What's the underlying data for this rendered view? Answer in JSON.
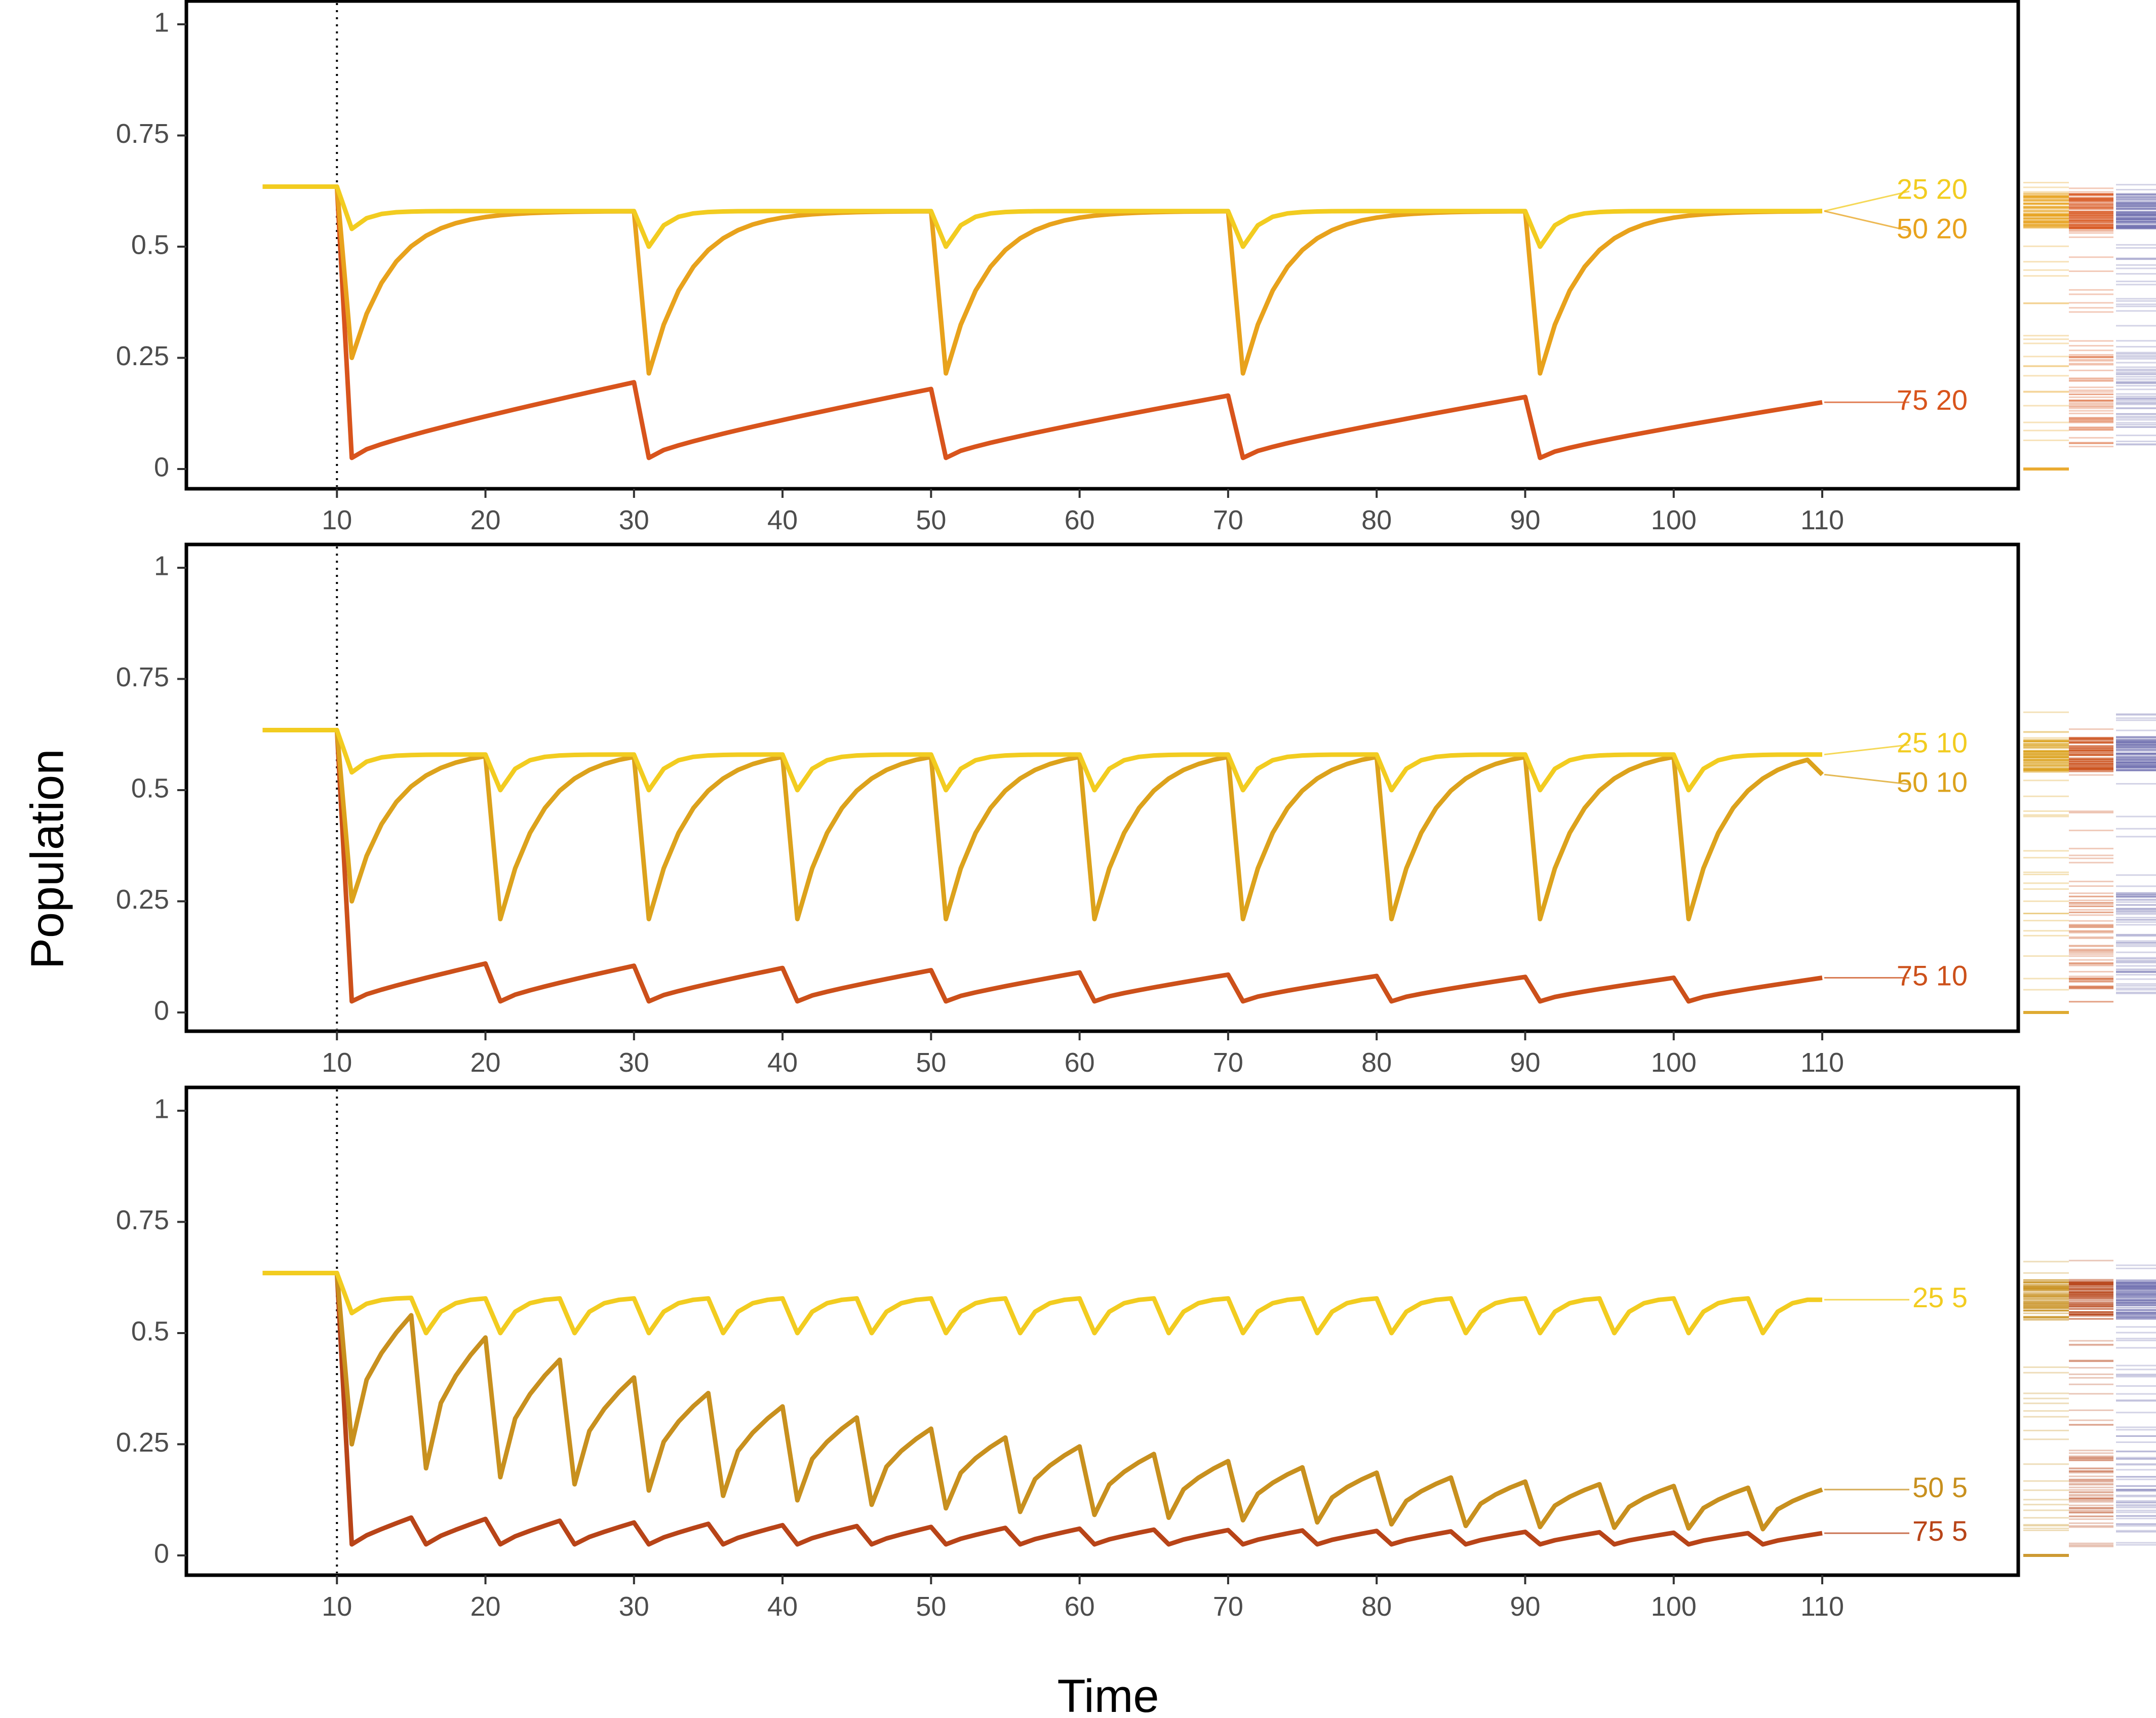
{
  "figure": {
    "xlabel": "Time",
    "ylabel": "Population",
    "xticks": [
      10,
      20,
      30,
      40,
      50,
      60,
      70,
      80,
      90,
      100,
      110
    ],
    "yticks": [
      0,
      0.25,
      0.5,
      0.75,
      1
    ],
    "ytick_labels": [
      "0",
      "0.25",
      "0.5",
      "0.75",
      "1"
    ],
    "xlim": [
      0,
      124
    ],
    "ylim": [
      -0.04,
      1.04
    ],
    "intervention_time": 10,
    "colors": {
      "s25": "#f2cc20",
      "s50_20": "#e8a21c",
      "s50_10": "#dca21c",
      "s50_5": "#c8901e",
      "s75_20": "#d8541c",
      "s75_10": "#cc501a",
      "s75_5": "#b84418",
      "rug_blue": "#7070b0"
    }
  },
  "chart_data": [
    {
      "type": "line",
      "panel": "top",
      "interval": 20,
      "xlabel": "Time",
      "ylabel": "Population",
      "ylim": [
        -0.04,
        1.04
      ],
      "initial_level": 0.635,
      "series": [
        {
          "name": "25 20",
          "color": "#f2cc20",
          "drop_to": 0.5,
          "first_drop_to": 0.54,
          "recover_to": 0.58,
          "rate": 0.6,
          "kind": "recover",
          "end_value": 0.58
        },
        {
          "name": "50 20",
          "color": "#e8a21c",
          "drop_to": 0.215,
          "first_drop_to": 0.25,
          "recover_to": 0.58,
          "rate": 0.3,
          "kind": "recover",
          "end_value": 0.58
        },
        {
          "name": "75 20",
          "color": "#d8541c",
          "drop_to": 0.025,
          "first_drop_to": 0.025,
          "peaks": [
            0.195,
            0.18,
            0.165,
            0.162,
            0.15
          ],
          "kind": "rise",
          "end_value": 0.15
        }
      ]
    },
    {
      "type": "line",
      "panel": "middle",
      "interval": 10,
      "xlabel": "Time",
      "ylabel": "Population",
      "ylim": [
        -0.04,
        1.04
      ],
      "initial_level": 0.635,
      "series": [
        {
          "name": "25 10",
          "color": "#f2cc20",
          "drop_to": 0.5,
          "first_drop_to": 0.54,
          "recover_to": 0.58,
          "rate": 0.6,
          "kind": "recover",
          "end_value": 0.58
        },
        {
          "name": "50 10",
          "color": "#dca21c",
          "drop_to": 0.21,
          "first_drop_to": 0.25,
          "recover_to": 0.59,
          "rate": 0.3,
          "kind": "recover",
          "end_value": 0.535
        },
        {
          "name": "75 10",
          "color": "#cc501a",
          "drop_to": 0.025,
          "first_drop_to": 0.025,
          "peaks": [
            0.11,
            0.105,
            0.1,
            0.095,
            0.09,
            0.085,
            0.082,
            0.08,
            0.078,
            0.078
          ],
          "kind": "rise",
          "end_value": 0.078
        }
      ]
    },
    {
      "type": "line",
      "panel": "bottom",
      "interval": 5,
      "xlabel": "Time",
      "ylabel": "Population",
      "ylim": [
        -0.04,
        1.04
      ],
      "initial_level": 0.635,
      "series": [
        {
          "name": "25 5",
          "color": "#f2cc20",
          "drop_to": 0.5,
          "first_drop_to": 0.545,
          "recover_to": 0.58,
          "rate": 0.6,
          "kind": "recover",
          "end_value": 0.575
        },
        {
          "name": "50 5",
          "color": "#c8901e",
          "drop_to": null,
          "first_drop_to": 0.25,
          "peaks": [
            0.54,
            0.49,
            0.44,
            0.4,
            0.365,
            0.335,
            0.31,
            0.285,
            0.265,
            0.245,
            0.228,
            0.212,
            0.198,
            0.186,
            0.175,
            0.166,
            0.16,
            0.156,
            0.152,
            0.148
          ],
          "troughs_ratio": 0.4,
          "kind": "decay",
          "end_value": 0.148
        },
        {
          "name": "75 5",
          "color": "#b84418",
          "drop_to": 0.025,
          "first_drop_to": 0.025,
          "peaks": [
            0.085,
            0.082,
            0.078,
            0.074,
            0.071,
            0.068,
            0.066,
            0.064,
            0.062,
            0.06,
            0.058,
            0.057,
            0.056,
            0.055,
            0.054,
            0.053,
            0.052,
            0.051,
            0.05,
            0.05
          ],
          "kind": "rise",
          "end_value": 0.05
        }
      ]
    }
  ]
}
